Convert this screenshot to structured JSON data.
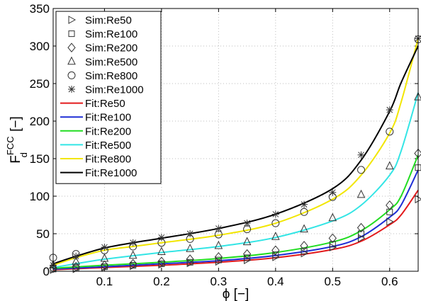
{
  "chart_data": {
    "type": "line",
    "title": "",
    "xlabel": "ϕ [−]",
    "ylabel": {
      "main": "F",
      "sup": "FCC",
      "sub": "d",
      "unit": " [−]"
    },
    "xlim": [
      0.01,
      0.65
    ],
    "ylim": [
      0,
      350
    ],
    "xticks": [
      0.1,
      0.2,
      0.3,
      0.4,
      0.5,
      0.6
    ],
    "xtick_labels": [
      "0.1",
      "0.2",
      "0.3",
      "0.4",
      "0.5",
      "0.6"
    ],
    "yticks": [
      0,
      50,
      100,
      150,
      200,
      250,
      300,
      350
    ],
    "ytick_labels": [
      "0",
      "50",
      "100",
      "150",
      "200",
      "250",
      "300",
      "350"
    ],
    "grid": true,
    "legend_position": "top-left",
    "sim_x": [
      0.01,
      0.05,
      0.1,
      0.15,
      0.2,
      0.25,
      0.3,
      0.35,
      0.4,
      0.45,
      0.5,
      0.55,
      0.6,
      0.65
    ],
    "sim_series": [
      {
        "name": "Sim:Re50",
        "marker": "triangle-right",
        "values": [
          2,
          3,
          5,
          7,
          9,
          11,
          13,
          15,
          19,
          24,
          32,
          44,
          66,
          96
        ]
      },
      {
        "name": "Sim:Re100",
        "marker": "square",
        "values": [
          3,
          4,
          6,
          8,
          10,
          12,
          15,
          18,
          22,
          27,
          36,
          50,
          79,
          138
        ]
      },
      {
        "name": "Sim:Re200",
        "marker": "diamond",
        "values": [
          4,
          6,
          8,
          10,
          13,
          16,
          19,
          23,
          28,
          34,
          44,
          58,
          88,
          157
        ]
      },
      {
        "name": "Sim:Re500",
        "marker": "triangle-up",
        "values": [
          8,
          13,
          17,
          21,
          26,
          30,
          34,
          39,
          46,
          56,
          71,
          102,
          140,
          232
        ]
      },
      {
        "name": "Sim:Re800",
        "marker": "circle",
        "values": [
          18,
          23,
          28,
          33,
          38,
          43,
          49,
          56,
          64,
          79,
          99,
          135,
          186,
          309
        ]
      },
      {
        "name": "Sim:Re1000",
        "marker": "asterisk",
        "values": [
          8,
          20,
          32,
          38,
          45,
          50,
          57,
          64,
          76,
          89,
          105,
          155,
          215,
          310
        ]
      }
    ],
    "fit_series": [
      {
        "name": "Fit:Re50",
        "color": "#e31a1c",
        "x": [
          0.01,
          0.1,
          0.2,
          0.3,
          0.4,
          0.5,
          0.55,
          0.6,
          0.62,
          0.65
        ],
        "values": [
          2,
          5,
          8,
          12,
          18,
          29,
          40,
          62,
          75,
          108
        ]
      },
      {
        "name": "Fit:Re100",
        "color": "#1f2fd6",
        "x": [
          0.01,
          0.1,
          0.2,
          0.3,
          0.4,
          0.5,
          0.55,
          0.6,
          0.62,
          0.65
        ],
        "values": [
          3,
          6,
          10,
          14,
          21,
          33,
          46,
          72,
          88,
          135
        ]
      },
      {
        "name": "Fit:Re200",
        "color": "#22dd22",
        "x": [
          0.01,
          0.1,
          0.2,
          0.3,
          0.4,
          0.5,
          0.55,
          0.6,
          0.62,
          0.65
        ],
        "values": [
          4,
          8,
          12,
          17,
          25,
          39,
          54,
          82,
          100,
          155
        ]
      },
      {
        "name": "Fit:Re500",
        "color": "#33e5e5",
        "x": [
          0.01,
          0.05,
          0.1,
          0.2,
          0.3,
          0.4,
          0.5,
          0.55,
          0.6,
          0.62,
          0.65
        ],
        "values": [
          5,
          10,
          16,
          25,
          33,
          45,
          67,
          88,
          128,
          160,
          238
        ]
      },
      {
        "name": "Fit:Re800",
        "color": "#f2e600",
        "x": [
          0.01,
          0.05,
          0.1,
          0.15,
          0.2,
          0.3,
          0.4,
          0.5,
          0.55,
          0.6,
          0.62,
          0.65
        ],
        "values": [
          8,
          18,
          28,
          33,
          38,
          48,
          64,
          96,
          128,
          184,
          225,
          310
        ]
      },
      {
        "name": "Fit:Re1000",
        "color": "#000000",
        "x": [
          0.01,
          0.05,
          0.1,
          0.15,
          0.2,
          0.3,
          0.4,
          0.5,
          0.55,
          0.6,
          0.62,
          0.65
        ],
        "values": [
          10,
          20,
          31,
          38,
          44,
          57,
          76,
          110,
          148,
          213,
          251,
          300
        ]
      }
    ]
  }
}
